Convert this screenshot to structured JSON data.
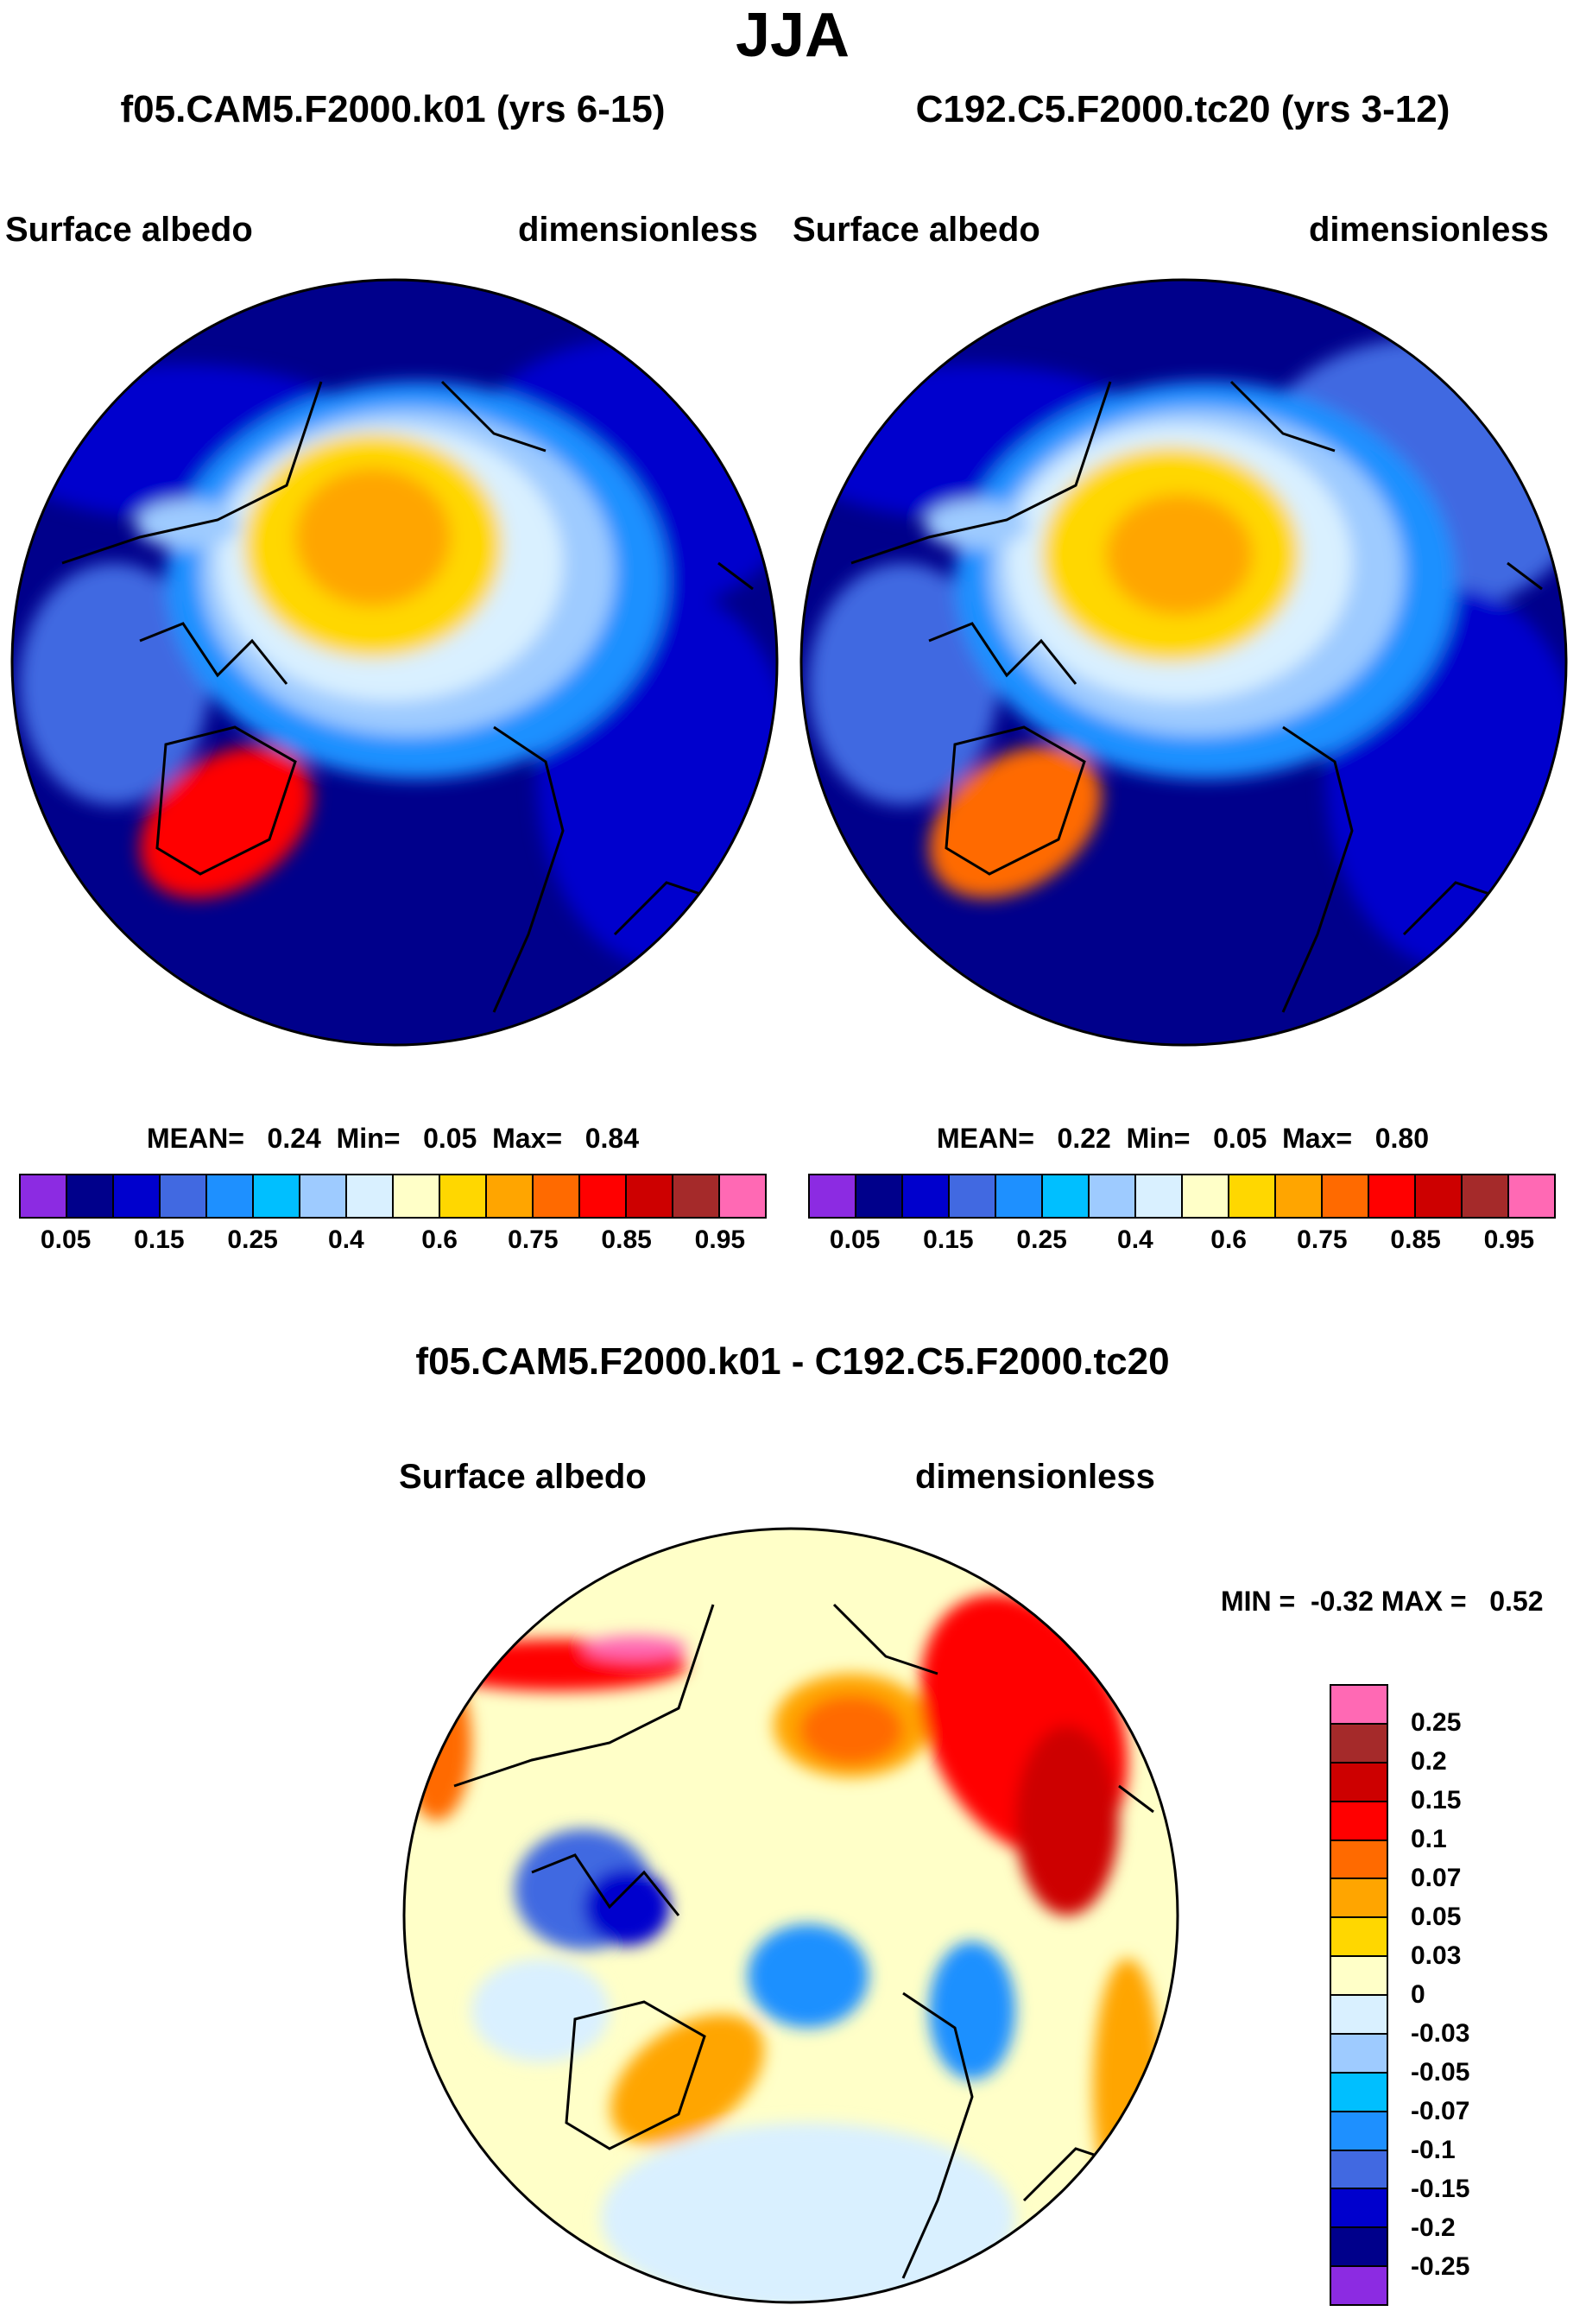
{
  "page_title": "JJA",
  "panel_left": {
    "title": "f05.CAM5.F2000.k01 (yrs 6-15)",
    "variable": "Surface albedo",
    "units": "dimensionless",
    "stats": "MEAN=   0.24  Min=   0.05  Max=   0.84"
  },
  "panel_right": {
    "title": "C192.C5.F2000.tc20 (yrs 3-12)",
    "variable": "Surface albedo",
    "units": "dimensionless",
    "stats": "MEAN=   0.22  Min=   0.05  Max=   0.80"
  },
  "panel_diff": {
    "title": "f05.CAM5.F2000.k01 - C192.C5.F2000.tc20",
    "variable": "Surface albedo",
    "units": "dimensionless",
    "stats": "MIN =  -0.32 MAX =   0.52"
  },
  "colorbar_top": {
    "labels": [
      "0.05",
      "0.15",
      "0.25",
      "0.4",
      "0.6",
      "0.75",
      "0.85",
      "0.95"
    ],
    "colors": [
      "#8c2be2",
      "#00008b",
      "#0000cd",
      "#4169e1",
      "#1e90ff",
      "#00bfff",
      "#9ecbff",
      "#d9f0ff",
      "#ffffc8",
      "#ffd700",
      "#ffa500",
      "#ff6a00",
      "#ff0000",
      "#cd0000",
      "#a52a2a",
      "#ff69b4"
    ]
  },
  "colorbar_diff": {
    "labels": [
      "0.25",
      "0.2",
      "0.15",
      "0.1",
      "0.07",
      "0.05",
      "0.03",
      "0",
      "-0.03",
      "-0.05",
      "-0.07",
      "-0.1",
      "-0.15",
      "-0.2",
      "-0.25"
    ],
    "colors": [
      "#ff69b4",
      "#a52a2a",
      "#cd0000",
      "#ff0000",
      "#ff6a00",
      "#ffa500",
      "#ffd700",
      "#ffffc8",
      "#d9f0ff",
      "#9ecbff",
      "#00bfff",
      "#1e90ff",
      "#4169e1",
      "#0000cd",
      "#00008b",
      "#8c2be2"
    ]
  }
}
